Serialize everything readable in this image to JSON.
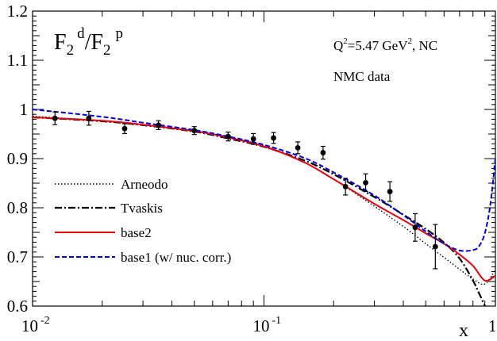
{
  "chart_data": {
    "type": "line",
    "title": "F2 d/F2 p",
    "title_parts": {
      "base1": "F",
      "sub1": "2",
      "sup1": "d",
      "slash": "/",
      "base2": "F",
      "sub2": "2",
      "sup2": "p"
    },
    "annotation_q2": {
      "prefix": "Q",
      "sup": "2",
      "mid": "=5.47 GeV",
      "sup2": "2",
      "suffix": ", NC"
    },
    "annotation_data": "NMC data",
    "xlabel": "x",
    "ylabel": "",
    "x_scale": "log",
    "xlim": [
      0.01,
      1
    ],
    "ylim": [
      0.6,
      1.2
    ],
    "x_ticks": [
      {
        "value": 0.01,
        "base": "10",
        "exp": "-2"
      },
      {
        "value": 0.1,
        "base": "10",
        "exp": "-1"
      },
      {
        "value": 1,
        "base": "1",
        "exp": ""
      }
    ],
    "y_ticks": [
      "0.6",
      "0.7",
      "0.8",
      "0.9",
      "1",
      "1.1",
      "1.2"
    ],
    "legend_position": "bottom-left",
    "series": [
      {
        "name": "Arneodo",
        "color": "#000000",
        "style": "dotted",
        "x": [
          0.01,
          0.02,
          0.03,
          0.05,
          0.07,
          0.1,
          0.15,
          0.2,
          0.3,
          0.4,
          0.5,
          0.6,
          0.7,
          0.8,
          0.9,
          1.0
        ],
        "y": [
          0.986,
          0.977,
          0.969,
          0.957,
          0.944,
          0.926,
          0.892,
          0.858,
          0.803,
          0.762,
          0.727,
          0.699,
          0.675,
          0.655,
          0.645,
          0.675
        ]
      },
      {
        "name": "Tvaskis",
        "color": "#000000",
        "style": "dashdot",
        "x": [
          0.01,
          0.02,
          0.03,
          0.05,
          0.07,
          0.1,
          0.15,
          0.2,
          0.3,
          0.4,
          0.5,
          0.6,
          0.7,
          0.8,
          0.85,
          0.9,
          0.93
        ],
        "y": [
          0.984,
          0.976,
          0.968,
          0.955,
          0.941,
          0.924,
          0.896,
          0.868,
          0.822,
          0.786,
          0.757,
          0.729,
          0.697,
          0.652,
          0.626,
          0.601,
          0.585
        ]
      },
      {
        "name": "base2",
        "color": "#e8000b",
        "style": "solid",
        "x": [
          0.01,
          0.02,
          0.03,
          0.05,
          0.07,
          0.1,
          0.15,
          0.2,
          0.3,
          0.4,
          0.5,
          0.6,
          0.7,
          0.8,
          0.9,
          1.0
        ],
        "y": [
          0.984,
          0.977,
          0.969,
          0.956,
          0.943,
          0.925,
          0.892,
          0.858,
          0.808,
          0.775,
          0.748,
          0.727,
          0.705,
          0.682,
          0.652,
          0.662
        ]
      },
      {
        "name": "base1 (w/ nuc. corr.)",
        "color": "#0000dd",
        "style": "dashed",
        "x": [
          0.01,
          0.02,
          0.03,
          0.05,
          0.07,
          0.1,
          0.15,
          0.2,
          0.3,
          0.4,
          0.5,
          0.6,
          0.7,
          0.8,
          0.85,
          0.9,
          0.95,
          1.0
        ],
        "y": [
          1.0,
          0.985,
          0.973,
          0.958,
          0.945,
          0.928,
          0.901,
          0.872,
          0.825,
          0.785,
          0.752,
          0.727,
          0.713,
          0.714,
          0.722,
          0.748,
          0.805,
          0.9
        ]
      }
    ],
    "data_points": {
      "name": "NMC data",
      "x": [
        0.0125,
        0.0175,
        0.025,
        0.035,
        0.05,
        0.07,
        0.09,
        0.11,
        0.14,
        0.18,
        0.225,
        0.275,
        0.35,
        0.45,
        0.55
      ],
      "y": [
        0.982,
        0.982,
        0.961,
        0.968,
        0.957,
        0.945,
        0.94,
        0.942,
        0.922,
        0.912,
        0.843,
        0.851,
        0.833,
        0.76,
        0.721
      ],
      "err": [
        0.013,
        0.014,
        0.01,
        0.009,
        0.008,
        0.009,
        0.011,
        0.011,
        0.012,
        0.013,
        0.017,
        0.018,
        0.02,
        0.028,
        0.045
      ]
    }
  }
}
